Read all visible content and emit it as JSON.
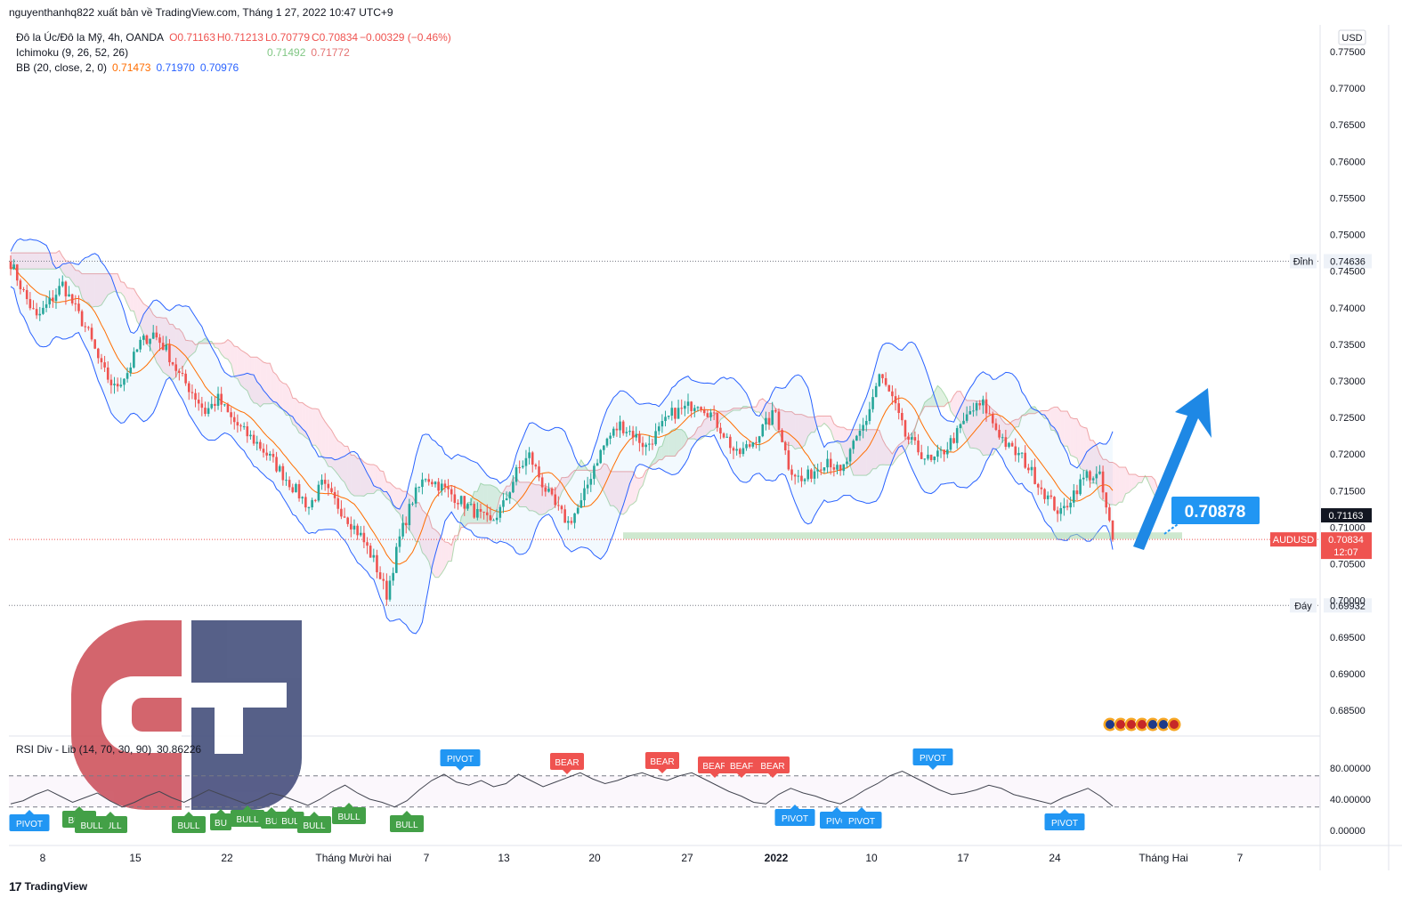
{
  "header": {
    "publisher_line": "nguyenthanhq822 xuất bản về TradingView.com, Tháng 1 27, 2022 10:47 UTC+9"
  },
  "legend": {
    "symbol": "Đô la Úc/Đô la Mỹ, 4h, OANDA",
    "o": "O0.71163",
    "h": "H0.71213",
    "l": "L0.70779",
    "c": "C0.70834",
    "chg": "−0.00329 (−0.46%)",
    "ichimoku_label": "Ichimoku (9, 26, 52, 26)",
    "ichimoku_v1": "0.71492",
    "ichimoku_v2": "0.71772",
    "bb_label": "BB (20, close, 2, 0)",
    "bb_v1": "0.71473",
    "bb_v2": "0.71970",
    "bb_v3": "0.70976",
    "rsi_label": "RSI Div - Lib (14, 70, 30, 90)",
    "rsi_value": "30.86226"
  },
  "colors": {
    "up": "#26a69a",
    "down": "#ef5350",
    "bb_band": "#2962ff",
    "bb_basis": "#ff6d00",
    "cloud_bull": "#a5d6a7",
    "cloud_bear": "#f8bbd0",
    "arrow": "#1e88e5",
    "callout": "#2196f3",
    "bull_label": "#43a047",
    "bear_label": "#ef5350",
    "pivot_label": "#2196f3",
    "logo_red": "#d05a63",
    "logo_blue": "#4a5580"
  },
  "footer": {
    "brand": "TradingView",
    "mark": "17"
  },
  "chart_data": [
    {
      "type": "candlestick",
      "symbol": "AUDUSD",
      "currency": "USD",
      "timeframe": "4h",
      "ylim": [
        0.681,
        0.7795
      ],
      "y_ticks": [
        "0.77500",
        "0.77000",
        "0.76500",
        "0.76000",
        "0.75500",
        "0.75000",
        "0.74500",
        "0.74000",
        "0.73500",
        "0.73000",
        "0.72500",
        "0.72000",
        "0.71500",
        "0.71000",
        "0.70500",
        "0.70000",
        "0.69500",
        "0.69000",
        "0.68500"
      ],
      "x_ticks": [
        "8",
        "15",
        "22",
        "Tháng Mười hai",
        "7",
        "13",
        "20",
        "27",
        "2022",
        "10",
        "17",
        "24",
        "Tháng Hai",
        "7"
      ],
      "close_path": [
        0.7462,
        0.742,
        0.7385,
        0.7408,
        0.7432,
        0.7398,
        0.7365,
        0.7318,
        0.729,
        0.7312,
        0.7352,
        0.7365,
        0.7342,
        0.7308,
        0.7285,
        0.7258,
        0.7275,
        0.7248,
        0.723,
        0.7215,
        0.7195,
        0.7172,
        0.715,
        0.7128,
        0.7158,
        0.7135,
        0.7112,
        0.7088,
        0.7055,
        0.7008,
        0.7085,
        0.7138,
        0.717,
        0.7158,
        0.7145,
        0.7132,
        0.7118,
        0.7105,
        0.713,
        0.7175,
        0.7198,
        0.716,
        0.7128,
        0.7106,
        0.7132,
        0.7185,
        0.722,
        0.724,
        0.7228,
        0.721,
        0.7232,
        0.7255,
        0.7262,
        0.7272,
        0.7255,
        0.7228,
        0.7198,
        0.7212,
        0.7235,
        0.7258,
        0.7185,
        0.7162,
        0.7178,
        0.7195,
        0.7172,
        0.721,
        0.7248,
        0.7308,
        0.7275,
        0.7225,
        0.7205,
        0.7188,
        0.7205,
        0.7228,
        0.7258,
        0.7268,
        0.7235,
        0.7208,
        0.7195,
        0.7168,
        0.714,
        0.7118,
        0.7148,
        0.7172,
        0.7168,
        0.7083
      ],
      "horizontal_levels": [
        {
          "label": "Đỉnh",
          "value": 0.74636,
          "text": "0.74636"
        },
        {
          "label": "Đáy",
          "value": 0.69932,
          "text": "0.69932"
        }
      ],
      "support_zone": [
        0.7084,
        0.7093
      ],
      "price_labels": [
        {
          "text": "0.71163",
          "value": 0.71163,
          "style": "dark"
        },
        {
          "name": "AUDUSD",
          "text": "0.70834",
          "countdown": "12:07",
          "value": 0.70834,
          "style": "red"
        }
      ],
      "callout": {
        "text": "0.70878",
        "value": 0.70878
      },
      "overlays": [
        "Ichimoku (9, 26, 52, 26)",
        "BB (20, close, 2, 0)"
      ]
    },
    {
      "type": "line",
      "indicator": "RSI Div - Lib (14, 70, 30, 90)",
      "ylim": [
        -5,
        95
      ],
      "y_ticks": [
        "80.00000",
        "40.00000",
        "0.00000"
      ],
      "band": [
        30,
        70
      ],
      "values": [
        34,
        38,
        46,
        52,
        44,
        36,
        42,
        48,
        38,
        30,
        36,
        44,
        50,
        42,
        36,
        44,
        52,
        46,
        40,
        34,
        40,
        48,
        44,
        38,
        32,
        40,
        50,
        58,
        48,
        40,
        36,
        30,
        38,
        52,
        64,
        72,
        62,
        58,
        64,
        56,
        60,
        72,
        64,
        56,
        62,
        68,
        74,
        66,
        60,
        64,
        70,
        74,
        68,
        64,
        70,
        74,
        66,
        58,
        50,
        44,
        36,
        34,
        46,
        54,
        48,
        44,
        38,
        34,
        42,
        52,
        60,
        70,
        76,
        68,
        60,
        52,
        46,
        48,
        52,
        58,
        54,
        46,
        42,
        38,
        34,
        42,
        48,
        54,
        44,
        31
      ],
      "signals": [
        {
          "text": "PIVOT",
          "kind": "pivot"
        },
        {
          "text": "BULL",
          "kind": "bull"
        },
        {
          "text": "BULL",
          "kind": "bull"
        },
        {
          "text": "BULL",
          "kind": "bull"
        },
        {
          "text": "BULL",
          "kind": "bull"
        },
        {
          "text": "BU",
          "kind": "bull"
        },
        {
          "text": "BULL",
          "kind": "bull"
        },
        {
          "text": "BU",
          "kind": "bull"
        },
        {
          "text": "BUL",
          "kind": "bull"
        },
        {
          "text": "BULL",
          "kind": "bull"
        },
        {
          "text": "BULL",
          "kind": "bull"
        },
        {
          "text": "BULL",
          "kind": "bull"
        },
        {
          "text": "PIVOT",
          "kind": "pivot"
        },
        {
          "text": "BEAR",
          "kind": "bear"
        },
        {
          "text": "BEAR",
          "kind": "bear"
        },
        {
          "text": "BEAR",
          "kind": "bear"
        },
        {
          "text": "BEAF",
          "kind": "bear"
        },
        {
          "text": "BEAR",
          "kind": "bear"
        },
        {
          "text": "PIVOT",
          "kind": "pivot"
        },
        {
          "text": "PIVO",
          "kind": "pivot"
        },
        {
          "text": "PIVOT",
          "kind": "pivot"
        },
        {
          "text": "PIVOT",
          "kind": "pivot"
        },
        {
          "text": "PIVOT",
          "kind": "pivot"
        }
      ]
    }
  ]
}
